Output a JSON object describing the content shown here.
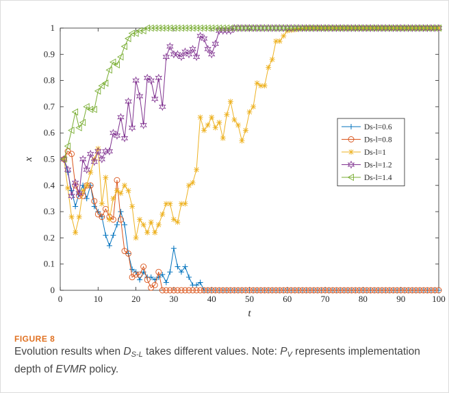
{
  "figure": {
    "label": "FIGURE 8",
    "caption": {
      "pre": "Evolution results when ",
      "var1": "D",
      "var1_sub": "S-L",
      "mid1": " takes different values. Note: ",
      "var2": "P",
      "var2_sub": "V",
      "mid2": " represents implementation depth of ",
      "var3": "EVMR",
      "post": " policy."
    }
  },
  "chart_data": {
    "type": "line",
    "xlabel": "t",
    "ylabel": "x",
    "xlim": [
      0,
      100
    ],
    "ylim": [
      0,
      1
    ],
    "xticks": [
      0,
      10,
      20,
      30,
      40,
      50,
      60,
      70,
      80,
      90,
      100
    ],
    "yticks": [
      0,
      0.1,
      0.2,
      0.3,
      0.4,
      0.5,
      0.6,
      0.7,
      0.8,
      0.9,
      1
    ],
    "grid": false,
    "legend_position": "right",
    "series": [
      {
        "name": "Ds-l=0.6",
        "color": "#0072BD",
        "marker": "plus",
        "x": [
          1,
          2,
          3,
          4,
          5,
          6,
          7,
          8,
          9,
          10,
          11,
          12,
          13,
          14,
          15,
          16,
          17,
          18,
          19,
          20,
          21,
          22,
          23,
          24,
          25,
          26,
          27,
          28,
          29,
          30,
          31,
          32,
          33,
          34,
          35,
          36,
          37,
          38,
          39,
          40,
          45,
          50,
          60,
          70,
          80,
          90,
          100
        ],
        "y": [
          0.5,
          0.45,
          0.38,
          0.32,
          0.37,
          0.4,
          0.35,
          0.4,
          0.32,
          0.3,
          0.28,
          0.21,
          0.17,
          0.21,
          0.25,
          0.3,
          0.25,
          0.14,
          0.08,
          0.07,
          0.04,
          0.07,
          0.05,
          0.05,
          0.04,
          0.05,
          0.06,
          0.03,
          0.07,
          0.16,
          0.09,
          0.07,
          0.09,
          0.05,
          0.02,
          0.02,
          0.03,
          0,
          0,
          0,
          0,
          0,
          0,
          0,
          0,
          0,
          0
        ]
      },
      {
        "name": "Ds-l=0.8",
        "color": "#D95319",
        "marker": "circle",
        "x": [
          1,
          2,
          3,
          4,
          5,
          6,
          7,
          8,
          9,
          10,
          11,
          12,
          13,
          14,
          15,
          16,
          17,
          18,
          19,
          20,
          21,
          22,
          23,
          24,
          25,
          26,
          27,
          28,
          29,
          30,
          31,
          32,
          33,
          34,
          35,
          36,
          37,
          38,
          39,
          40,
          45,
          50,
          60,
          70,
          80,
          90,
          100
        ],
        "y": [
          0.5,
          0.53,
          0.52,
          0.4,
          0.36,
          0.36,
          0.4,
          0.4,
          0.34,
          0.29,
          0.28,
          0.31,
          0.28,
          0.27,
          0.42,
          0.27,
          0.15,
          0.14,
          0.05,
          0.06,
          0.06,
          0.09,
          0.04,
          0.01,
          0.02,
          0.07,
          0,
          0,
          0,
          0,
          0,
          0,
          0,
          0,
          0,
          0,
          0,
          0,
          0,
          0,
          0,
          0,
          0,
          0,
          0,
          0,
          0
        ]
      },
      {
        "name": "Ds-l=1",
        "color": "#EDB120",
        "marker": "star",
        "x": [
          1,
          2,
          3,
          4,
          5,
          6,
          7,
          8,
          9,
          10,
          11,
          12,
          13,
          14,
          15,
          16,
          17,
          18,
          19,
          20,
          21,
          22,
          23,
          24,
          25,
          26,
          27,
          28,
          29,
          30,
          31,
          32,
          33,
          34,
          35,
          36,
          37,
          38,
          39,
          40,
          41,
          42,
          43,
          44,
          45,
          46,
          47,
          48,
          49,
          50,
          51,
          52,
          53,
          54,
          55,
          56,
          57,
          58,
          59,
          60,
          65,
          70,
          75,
          80,
          85,
          90,
          95,
          100
        ],
        "y": [
          0.5,
          0.39,
          0.28,
          0.22,
          0.28,
          0.38,
          0.4,
          0.45,
          0.5,
          0.54,
          0.33,
          0.43,
          0.27,
          0.35,
          0.38,
          0.37,
          0.4,
          0.38,
          0.32,
          0.2,
          0.27,
          0.25,
          0.22,
          0.26,
          0.22,
          0.25,
          0.29,
          0.33,
          0.33,
          0.27,
          0.26,
          0.33,
          0.33,
          0.4,
          0.41,
          0.46,
          0.66,
          0.61,
          0.63,
          0.66,
          0.62,
          0.64,
          0.58,
          0.67,
          0.72,
          0.65,
          0.63,
          0.57,
          0.61,
          0.68,
          0.7,
          0.79,
          0.78,
          0.78,
          0.85,
          0.88,
          0.95,
          0.95,
          0.97,
          0.99,
          1,
          1,
          1,
          1,
          1,
          1,
          1,
          1
        ]
      },
      {
        "name": "Ds-l=1.2",
        "color": "#7E2F8E",
        "marker": "hexstar",
        "x": [
          1,
          2,
          3,
          4,
          5,
          6,
          7,
          8,
          9,
          10,
          11,
          12,
          13,
          14,
          15,
          16,
          17,
          18,
          19,
          20,
          21,
          22,
          23,
          24,
          25,
          26,
          27,
          28,
          29,
          30,
          31,
          32,
          33,
          34,
          35,
          36,
          37,
          38,
          39,
          40,
          41,
          42,
          43,
          44,
          45,
          46,
          47,
          48,
          50,
          60,
          70,
          80,
          90,
          100
        ],
        "y": [
          0.5,
          0.46,
          0.36,
          0.41,
          0.37,
          0.5,
          0.46,
          0.52,
          0.49,
          0.53,
          0.5,
          0.53,
          0.53,
          0.6,
          0.59,
          0.66,
          0.58,
          0.72,
          0.62,
          0.8,
          0.74,
          0.63,
          0.81,
          0.8,
          0.73,
          0.81,
          0.7,
          0.89,
          0.93,
          0.9,
          0.9,
          0.89,
          0.91,
          0.9,
          0.92,
          0.89,
          0.97,
          0.96,
          0.92,
          0.9,
          0.94,
          0.99,
          0.99,
          0.99,
          0.99,
          1,
          1,
          1,
          1,
          1,
          1,
          1,
          1,
          1
        ]
      },
      {
        "name": "Ds-l=1.4",
        "color": "#77AC30",
        "marker": "triangle-left",
        "x": [
          1,
          2,
          3,
          4,
          5,
          6,
          7,
          8,
          9,
          10,
          11,
          12,
          13,
          14,
          15,
          16,
          17,
          18,
          19,
          20,
          21,
          22,
          23,
          24,
          25,
          26,
          27,
          28,
          29,
          30,
          35,
          40,
          50,
          60,
          70,
          80,
          90,
          100
        ],
        "y": [
          0.5,
          0.55,
          0.61,
          0.68,
          0.62,
          0.64,
          0.7,
          0.69,
          0.69,
          0.76,
          0.78,
          0.79,
          0.84,
          0.87,
          0.86,
          0.89,
          0.93,
          0.96,
          0.98,
          0.98,
          0.99,
          0.99,
          1,
          1,
          1,
          1,
          1,
          1,
          1,
          1,
          1,
          1,
          1,
          1,
          1,
          1,
          1,
          1
        ]
      }
    ]
  }
}
